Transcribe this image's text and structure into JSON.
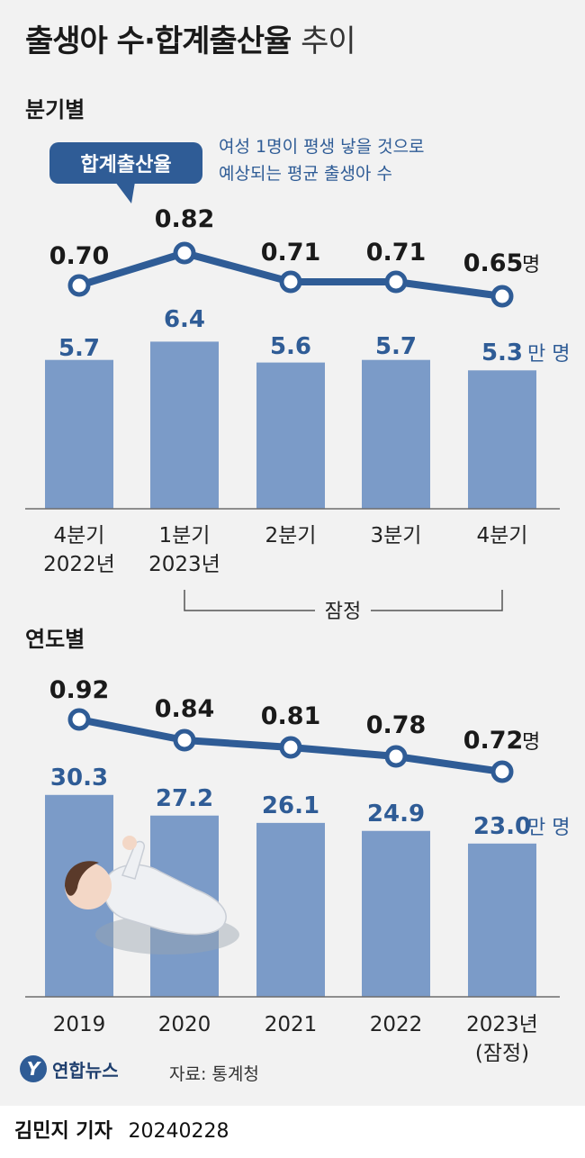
{
  "title": {
    "main": "출생아 수·합계출산율",
    "sub": "추이"
  },
  "quarterly": {
    "section_label": "분기별",
    "tag_label": "합계출산율",
    "note_line1": "여성 1명이 평생 낳을 것으로",
    "note_line2": "예상되는 평균 출생아 수",
    "bracket_label": "잠정"
  },
  "yearly": {
    "section_label": "연도별"
  },
  "source": "자료: 통계청",
  "logo_text": "연합뉴스",
  "reporter": "김민지 기자",
  "date": "20240228",
  "colors": {
    "bar": "#7b9bc8",
    "line": "#2f5c96",
    "bar_label": "#2f5c96",
    "rate_label": "#1a1a1a"
  },
  "chart_data": [
    {
      "type": "bar",
      "title": "분기별",
      "categories": [
        "4분기\n2022년",
        "1분기\n2023년",
        "2분기",
        "3분기",
        "4분기"
      ],
      "series": [
        {
          "values": [
            5.7,
            6.4,
            5.6,
            5.7,
            5.3
          ],
          "unit": "만 명"
        },
        {
          "name": "합계출산율",
          "type": "line",
          "values": [
            0.7,
            0.82,
            0.71,
            0.71,
            0.65
          ],
          "unit": "명"
        }
      ]
    },
    {
      "type": "bar",
      "title": "연도별",
      "categories": [
        "2019",
        "2020",
        "2021",
        "2022",
        "2023년\n(잠정)"
      ],
      "series": [
        {
          "values": [
            30.3,
            27.2,
            26.1,
            24.9,
            23.0
          ],
          "unit": "만 명"
        },
        {
          "type": "line",
          "values": [
            0.92,
            0.84,
            0.81,
            0.78,
            0.72
          ],
          "unit": "명"
        }
      ]
    }
  ]
}
